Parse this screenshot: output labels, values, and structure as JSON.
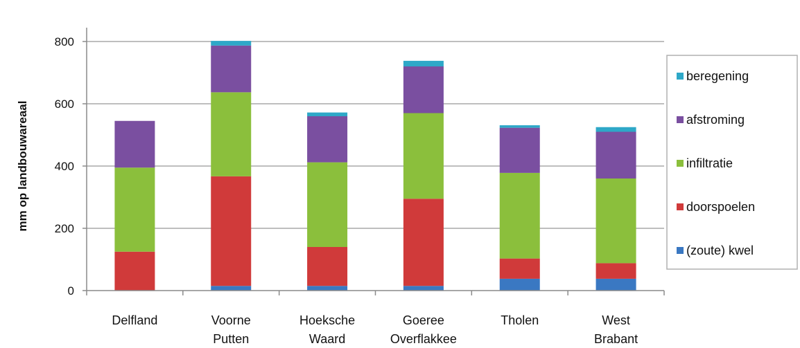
{
  "chart_data": {
    "type": "bar",
    "stacked": true,
    "categories": [
      [
        "Delfland"
      ],
      [
        "Voorne",
        "Putten"
      ],
      [
        "Hoeksche",
        "Waard"
      ],
      [
        "Goeree",
        "Overflakkee"
      ],
      [
        "Tholen"
      ],
      [
        "West",
        "Brabant"
      ]
    ],
    "series": [
      {
        "name": "(zoute) kwel",
        "color": "#3a78c2",
        "values": [
          0,
          15,
          15,
          15,
          38,
          38
        ]
      },
      {
        "name": "doorspoelen",
        "color": "#d03a3a",
        "values": [
          125,
          352,
          125,
          280,
          65,
          50
        ]
      },
      {
        "name": "infiltratie",
        "color": "#8bbf3c",
        "values": [
          270,
          270,
          272,
          275,
          275,
          272
        ]
      },
      {
        "name": "afstroming",
        "color": "#7a4fa0",
        "values": [
          150,
          150,
          148,
          150,
          145,
          150
        ]
      },
      {
        "name": "beregening",
        "color": "#2ea8c8",
        "values": [
          0,
          15,
          12,
          18,
          8,
          15
        ]
      }
    ],
    "title": "",
    "xlabel": "",
    "ylabel": "mm op landbouwareaal",
    "ylim": [
      0,
      800
    ],
    "yticks": [
      0,
      200,
      400,
      600,
      800
    ],
    "grid": true,
    "legend_position": "right",
    "legend_order": [
      "beregening",
      "afstroming",
      "infiltratie",
      "doorspoelen",
      "(zoute) kwel"
    ]
  }
}
